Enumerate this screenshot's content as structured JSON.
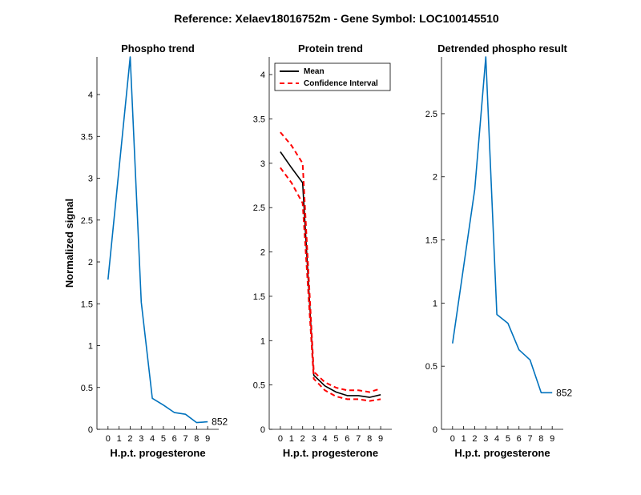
{
  "figure": {
    "title": "Reference:  Xelaev18016752m - Gene Symbol:  LOC100145510"
  },
  "colors": {
    "phospho_line": "#0072BD",
    "mean_line": "#000000",
    "ci_line": "#FF0000",
    "axis": "#000000"
  },
  "chart_data": [
    {
      "type": "line",
      "title": "Phospho trend",
      "xlabel": "H.p.t. progesterone",
      "ylabel": "Normalized signal",
      "xlim": [
        -1,
        10
      ],
      "ylim": [
        0,
        4.45
      ],
      "xticks": [
        0,
        1,
        2,
        3,
        4,
        5,
        6,
        7,
        8,
        9
      ],
      "yticks": [
        0,
        0.5,
        1,
        1.5,
        2,
        2.5,
        3,
        3.5,
        4
      ],
      "yticklabels": [
        "0",
        "0.5",
        "1",
        "1.5",
        "2",
        "2.5",
        "3",
        "3.5",
        "4"
      ],
      "series": [
        {
          "color": "#0072BD",
          "style": "solid",
          "x": [
            0,
            2,
            3,
            4,
            5,
            6,
            7,
            8,
            9
          ],
          "y": [
            1.79,
            4.45,
            1.52,
            0.37,
            0.29,
            0.2,
            0.18,
            0.08,
            0.09
          ]
        }
      ],
      "annotation": "852"
    },
    {
      "type": "line",
      "title": "Protein trend",
      "xlabel": "H.p.t. progesterone",
      "ylabel": "",
      "xlim": [
        -1,
        10
      ],
      "ylim": [
        0,
        4.2
      ],
      "xticks": [
        0,
        1,
        2,
        3,
        4,
        5,
        6,
        7,
        8,
        9
      ],
      "yticks": [
        0,
        0.5,
        1,
        1.5,
        2,
        2.5,
        3,
        3.5,
        4
      ],
      "yticklabels": [
        "0",
        "0.5",
        "1",
        "1.5",
        "2",
        "2.5",
        "3",
        "3.5",
        "4"
      ],
      "legend": {
        "position": "top-left",
        "entries": [
          "Mean",
          "Confidence Interval"
        ]
      },
      "series": [
        {
          "name": "Mean",
          "color": "#000000",
          "style": "solid",
          "x": [
            0,
            1,
            2,
            3,
            4,
            5,
            6,
            7,
            8,
            9
          ],
          "y": [
            3.13,
            2.95,
            2.78,
            0.61,
            0.49,
            0.42,
            0.38,
            0.38,
            0.36,
            0.39
          ]
        },
        {
          "name": "Confidence Interval",
          "color": "#FF0000",
          "style": "dashed",
          "x": [
            0,
            1,
            2,
            3,
            4,
            5,
            6,
            7,
            8,
            9
          ],
          "y": [
            3.35,
            3.2,
            3.0,
            0.65,
            0.53,
            0.47,
            0.44,
            0.44,
            0.42,
            0.46
          ]
        },
        {
          "name": "",
          "color": "#FF0000",
          "style": "dashed",
          "x": [
            0,
            1,
            2,
            3,
            4,
            5,
            6,
            7,
            8,
            9
          ],
          "y": [
            2.95,
            2.78,
            2.55,
            0.57,
            0.44,
            0.37,
            0.34,
            0.34,
            0.32,
            0.34
          ]
        }
      ]
    },
    {
      "type": "line",
      "title": "Detrended phospho result",
      "xlabel": "H.p.t. progesterone",
      "ylabel": "",
      "xlim": [
        -1,
        10
      ],
      "ylim": [
        0,
        2.95
      ],
      "xticks": [
        0,
        1,
        2,
        3,
        4,
        5,
        6,
        7,
        8,
        9
      ],
      "yticks": [
        0,
        0.5,
        1,
        1.5,
        2,
        2.5
      ],
      "yticklabels": [
        "0",
        "0.5",
        "1",
        "1.5",
        "2",
        "2.5"
      ],
      "series": [
        {
          "color": "#0072BD",
          "style": "solid",
          "x": [
            0,
            2,
            3,
            4,
            5,
            6,
            7,
            8,
            9
          ],
          "y": [
            0.68,
            1.9,
            2.95,
            0.91,
            0.84,
            0.63,
            0.55,
            0.29,
            0.29
          ]
        }
      ],
      "annotation": "852"
    }
  ]
}
